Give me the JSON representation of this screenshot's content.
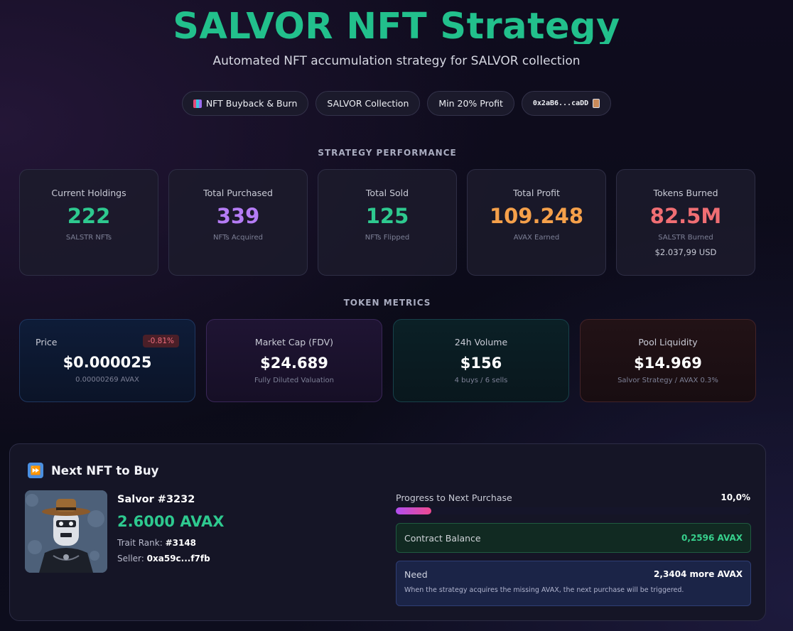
{
  "hero": {
    "title": "SALVOR NFT Strategy",
    "subtitle": "Automated NFT accumulation strategy for SALVOR collection"
  },
  "pills": [
    {
      "label": "NFT Buyback & Burn",
      "icon": "chart-icon"
    },
    {
      "label": "SALVOR Collection"
    },
    {
      "label": "Min 20% Profit"
    },
    {
      "label": "0x2aB6...caDD",
      "icon": "clipboard-icon"
    }
  ],
  "performance": {
    "heading": "STRATEGY PERFORMANCE",
    "cards": [
      {
        "title": "Current Holdings",
        "value": "222",
        "sub": "SALSTR NFTs",
        "color": "#2ec98f"
      },
      {
        "title": "Total Purchased",
        "value": "339",
        "sub": "NFTs Acquired",
        "color": "#b57cf5"
      },
      {
        "title": "Total Sold",
        "value": "125",
        "sub": "NFTs Flipped",
        "color": "#2ec98f"
      },
      {
        "title": "Total Profit",
        "value": "109.248",
        "sub": "AVAX Earned",
        "color": "#f5a04a"
      },
      {
        "title": "Tokens Burned",
        "value": "82.5M",
        "sub": "SALSTR Burned",
        "extra": "$2.037,99 USD",
        "color": "#f06e73"
      }
    ]
  },
  "token_metrics": {
    "heading": "TOKEN METRICS",
    "price": {
      "title": "Price",
      "badge": "-0.81%",
      "value": "$0.000025",
      "sub": "0.00000269 AVAX"
    },
    "mcap": {
      "title": "Market Cap (FDV)",
      "value": "$24.689",
      "sub": "Fully Diluted Valuation"
    },
    "volume": {
      "title": "24h Volume",
      "value": "$156",
      "sub": "4 buys / 6 sells"
    },
    "liquidity": {
      "title": "Pool Liquidity",
      "value": "$14.969",
      "sub": "Salvor Strategy / AVAX 0.3%"
    }
  },
  "next_nft": {
    "heading": "Next NFT to Buy",
    "name": "Salvor #3232",
    "price": "2.6000 AVAX",
    "rank_label": "Trait Rank:",
    "rank": "#3148",
    "seller_label": "Seller:",
    "seller": "0xa59c...f7fb",
    "progress_label": "Progress to Next Purchase",
    "progress_pct": "10,0%",
    "progress_fraction": 0.1,
    "balance_label": "Contract Balance",
    "balance_value": "0,2596 AVAX",
    "need_label": "Need",
    "need_value": "2,3404 more AVAX",
    "need_desc": "When the strategy acquires the missing AVAX, the next purchase will be triggered."
  }
}
